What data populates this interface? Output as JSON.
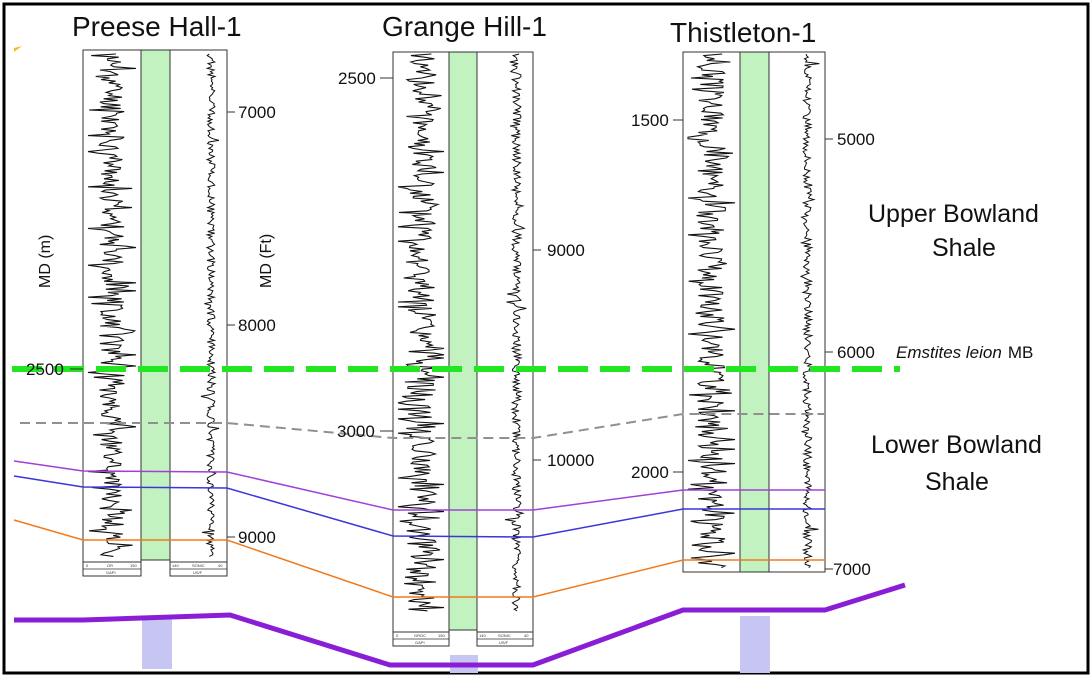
{
  "wells": [
    {
      "name": "Preese Hall-1",
      "left_axis_title": "MD (m)",
      "right_axis_title": "MD (Ft)",
      "left_depths": [
        "2500"
      ],
      "right_depths": [
        "7000",
        "8000",
        "9000"
      ],
      "footer_left": [
        "0",
        "GR",
        "150",
        "GAPI"
      ],
      "footer_right": [
        "140",
        "SONIC",
        "40",
        "US/F"
      ]
    },
    {
      "name": "Grange Hill-1",
      "left_depths": [
        "2500",
        "3000"
      ],
      "right_depths": [
        "9000",
        "10000"
      ],
      "footer_left": [
        "0",
        "GRGC",
        "150",
        "GAPI"
      ],
      "footer_right": [
        "140",
        "SONIC",
        "40",
        "US/F"
      ]
    },
    {
      "name": "Thistleton-1",
      "left_depths": [
        "1500",
        "2000"
      ],
      "right_depths": [
        "5000",
        "6000",
        "7000"
      ]
    }
  ],
  "formations": {
    "upper_line1": "Upper Bowland",
    "upper_line2": "Shale",
    "lower_line1": "Lower Bowland",
    "lower_line2": "Shale"
  },
  "marker_band": {
    "species": "Emstites leion",
    "suffix": "MB"
  },
  "colors": {
    "marker_band": "#22e622",
    "gray_horizon": "#909090",
    "magenta_horizon": "#a040d8",
    "blue_horizon": "#3a36d8",
    "orange_horizon": "#f07a1e",
    "base_horizon": "#8a1ed6",
    "green_column": "#c2f2c0",
    "bar_fill": "#c7c5f2"
  }
}
